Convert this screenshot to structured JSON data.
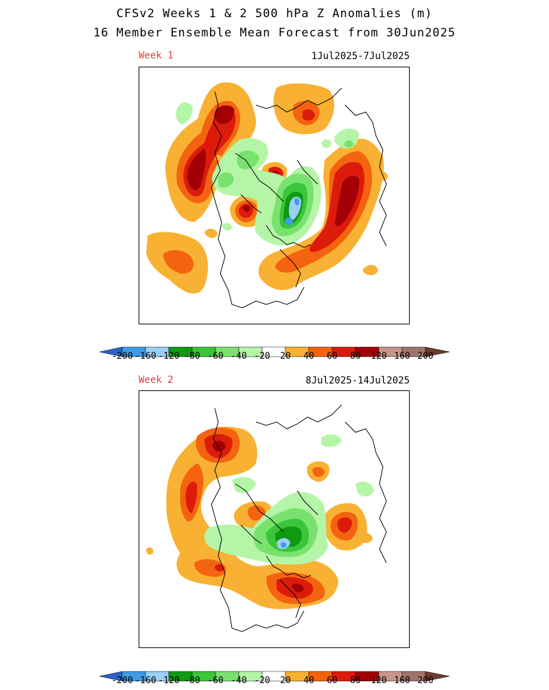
{
  "title_line1": "CFSv2 Weeks 1 & 2 500 hPa Z Anomalies (m)",
  "title_line2": "16 Member Ensemble Mean Forecast from 30Jun2025",
  "panels": [
    {
      "week_label": "Week 1",
      "date_range": "1Jul2025-7Jul2025"
    },
    {
      "week_label": "Week 2",
      "date_range": "8Jul2025-14Jul2025"
    }
  ],
  "colorbar": {
    "labels": [
      "-200",
      "-160",
      "-120",
      "-80",
      "-60",
      "-40",
      "-20",
      "20",
      "40",
      "60",
      "80",
      "120",
      "160",
      "200"
    ],
    "colors": {
      "lt_m200": "#2a63c9",
      "m200_m160": "#3f9be6",
      "m160_m120": "#9ccff4",
      "m120_m80": "#0f9a12",
      "m80_m60": "#3bc53b",
      "m60_m40": "#79e26e",
      "m40_m20": "#b5f5a8",
      "m20_20": "#ffffff",
      "p20_40": "#f8b132",
      "p40_60": "#f46310",
      "p60_80": "#dc1b0b",
      "p80_120": "#a30006",
      "p120_160": "#c6968b",
      "p160_200": "#a0766a",
      "gt_200": "#6e3b2c"
    }
  }
}
